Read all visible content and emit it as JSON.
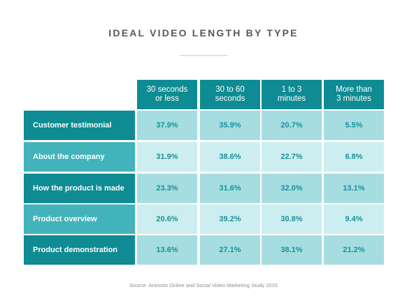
{
  "title": "IDEAL VIDEO LENGTH BY TYPE",
  "source": "Source: Animoto Online and Social Video Marketing Study 2015",
  "colors": {
    "header": "#0f8b93",
    "row_label_dark": "#0f8b93",
    "row_label_light": "#43b3bb",
    "cell_dark": "#a5dde1",
    "cell_light": "#cdeef0",
    "cell_text": "#17929a"
  },
  "chart_data": {
    "type": "table",
    "title": "IDEAL VIDEO LENGTH BY TYPE",
    "columns": [
      [
        "30 seconds",
        "or less"
      ],
      [
        "30 to 60",
        "seconds"
      ],
      [
        "1 to 3",
        "minutes"
      ],
      [
        "More than",
        "3 minutes"
      ]
    ],
    "rows": [
      {
        "label": "Customer testimonial",
        "values": [
          "37.9%",
          "35.9%",
          "20.7%",
          "5.5%"
        ]
      },
      {
        "label": "About the company",
        "values": [
          "31.9%",
          "38.6%",
          "22.7%",
          "6.8%"
        ]
      },
      {
        "label": "How the product is made",
        "values": [
          "23.3%",
          "31.6%",
          "32.0%",
          "13.1%"
        ]
      },
      {
        "label": "Product overview",
        "values": [
          "20.6%",
          "39.2%",
          "30.8%",
          "9.4%"
        ]
      },
      {
        "label": "Product demonstration",
        "values": [
          "13.6%",
          "27.1%",
          "38.1%",
          "21.2%"
        ]
      }
    ]
  }
}
